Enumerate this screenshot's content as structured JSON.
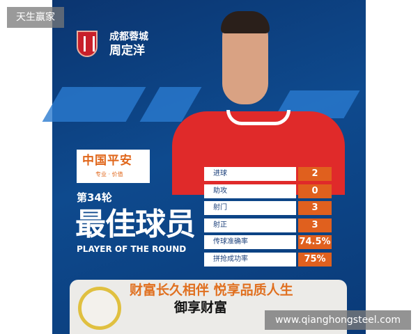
{
  "watermark_top": "天生赢家",
  "watermark_bottom": "www.qianghongsteel.com",
  "poster": {
    "club": "成都蓉城",
    "player": "周定洋",
    "sponsor": {
      "name": "中国平安",
      "slogan": "专业 · 价值"
    },
    "round": "第34轮",
    "title_cn": "最佳球员",
    "title_en": "PLAYER OF THE ROUND",
    "stats": [
      {
        "label": "进球",
        "value": "2"
      },
      {
        "label": "助攻",
        "value": "0"
      },
      {
        "label": "射门",
        "value": "3"
      },
      {
        "label": "射正",
        "value": "3"
      },
      {
        "label": "传球准确率",
        "value": "74.5%"
      },
      {
        "label": "拼抢成功率",
        "value": "75%"
      }
    ],
    "ad": {
      "headline": "财富长久相伴 悦享品质人生",
      "product": "御享财富"
    }
  },
  "colors": {
    "navy": "#0e4a8e",
    "orange": "#e0601e",
    "red": "#e02a2a"
  }
}
